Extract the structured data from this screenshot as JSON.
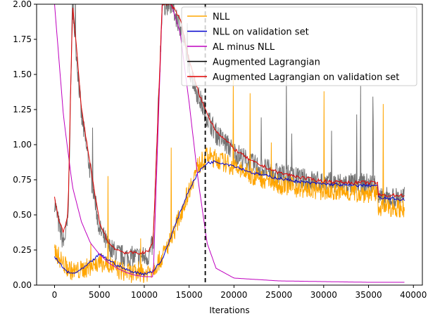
{
  "chart_data": {
    "type": "line",
    "title": "",
    "xlabel": "Iterations",
    "ylabel": "",
    "xlim": [
      -2000,
      41000
    ],
    "ylim": [
      0,
      2.0
    ],
    "x_ticks": [
      0,
      5000,
      10000,
      15000,
      20000,
      25000,
      30000,
      35000,
      40000
    ],
    "x_tick_labels": [
      "0",
      "5000",
      "10000",
      "15000",
      "20000",
      "25000",
      "30000",
      "35000",
      "40000"
    ],
    "y_ticks": [
      0,
      0.25,
      0.5,
      0.75,
      1.0,
      1.25,
      1.5,
      1.75,
      2.0
    ],
    "y_tick_labels": [
      "0.00",
      "0.25",
      "0.50",
      "0.75",
      "1.00",
      "1.25",
      "1.50",
      "1.75",
      "2.00"
    ],
    "grid": false,
    "legend_position": "top-right",
    "vertical_line": {
      "x": 16800,
      "style": "dashed",
      "color": "#000000"
    },
    "series": [
      {
        "name": "NLL",
        "color": "#FFA500",
        "noise": 0.07,
        "x": [
          0,
          500,
          1000,
          1500,
          2000,
          2500,
          3000,
          4000,
          5000,
          6000,
          7000,
          8000,
          9000,
          10000,
          11000,
          12000,
          13000,
          14000,
          15000,
          16000,
          17000,
          18000,
          20000,
          22000,
          25000,
          28000,
          30000,
          33000,
          36000,
          36100,
          39000
        ],
        "y": [
          0.25,
          0.2,
          0.15,
          0.12,
          0.1,
          0.1,
          0.11,
          0.13,
          0.16,
          0.15,
          0.11,
          0.09,
          0.08,
          0.08,
          0.12,
          0.2,
          0.33,
          0.5,
          0.68,
          0.85,
          0.92,
          0.9,
          0.84,
          0.78,
          0.72,
          0.68,
          0.67,
          0.66,
          0.65,
          0.56,
          0.55
        ]
      },
      {
        "name": "NLL on validation set",
        "color": "#0000CD",
        "noise": 0.01,
        "x": [
          0,
          500,
          1000,
          1500,
          2000,
          3000,
          4000,
          5000,
          6000,
          7000,
          8000,
          9000,
          10000,
          11000,
          12000,
          13000,
          14000,
          15000,
          16000,
          17000,
          18000,
          20000,
          22000,
          25000,
          28000,
          30000,
          33000,
          36000,
          36100,
          39000
        ],
        "y": [
          0.2,
          0.16,
          0.12,
          0.09,
          0.08,
          0.11,
          0.16,
          0.22,
          0.18,
          0.14,
          0.11,
          0.09,
          0.08,
          0.1,
          0.18,
          0.35,
          0.52,
          0.68,
          0.8,
          0.87,
          0.88,
          0.85,
          0.8,
          0.76,
          0.73,
          0.72,
          0.71,
          0.71,
          0.62,
          0.61
        ]
      },
      {
        "name": "AL minus NLL",
        "color": "#BF00BF",
        "noise": 0,
        "x": [
          0,
          1000,
          2000,
          3000,
          4000,
          5000,
          6000,
          7000,
          8000,
          9000,
          10000,
          11000,
          12000,
          13000,
          14000,
          15000,
          16000,
          17000,
          18000,
          20000,
          25000,
          30000,
          35000,
          39000
        ],
        "y": [
          2.0,
          1.2,
          0.7,
          0.45,
          0.3,
          0.22,
          0.16,
          0.12,
          0.09,
          0.07,
          0.06,
          0.06,
          2.0,
          2.0,
          1.8,
          1.3,
          0.75,
          0.3,
          0.12,
          0.05,
          0.03,
          0.025,
          0.02,
          0.02
        ]
      },
      {
        "name": "Augmented Lagrangian",
        "color": "#000000",
        "noise": 0.08,
        "x": [
          0,
          500,
          1000,
          1500,
          2000,
          2500,
          3000,
          4000,
          5000,
          6000,
          7000,
          8000,
          9000,
          10000,
          10500,
          11000,
          12000,
          13000,
          14000,
          15000,
          16000,
          17000,
          18000,
          20000,
          22000,
          25000,
          28000,
          30000,
          33000,
          36000,
          36100,
          39000
        ],
        "y": [
          0.6,
          0.42,
          0.3,
          0.45,
          2.0,
          1.6,
          1.2,
          0.8,
          0.4,
          0.27,
          0.22,
          0.2,
          0.2,
          0.2,
          0.21,
          0.3,
          2.0,
          2.0,
          1.85,
          1.55,
          1.35,
          1.2,
          1.08,
          0.95,
          0.86,
          0.79,
          0.75,
          0.73,
          0.72,
          0.72,
          0.62,
          0.62
        ]
      },
      {
        "name": "Augmented Lagrangian on validation set",
        "color": "#E00000",
        "noise": 0.012,
        "x": [
          0,
          500,
          1000,
          1500,
          2000,
          2500,
          3000,
          4000,
          5000,
          6000,
          7000,
          8000,
          9000,
          10000,
          10500,
          11000,
          12000,
          13000,
          14000,
          15000,
          16000,
          17000,
          18000,
          20000,
          22000,
          25000,
          28000,
          30000,
          33000,
          36000,
          36100,
          39000
        ],
        "y": [
          0.62,
          0.45,
          0.38,
          0.5,
          2.0,
          1.65,
          1.25,
          0.85,
          0.45,
          0.3,
          0.25,
          0.23,
          0.23,
          0.23,
          0.24,
          0.32,
          2.0,
          2.0,
          1.9,
          1.6,
          1.38,
          1.22,
          1.1,
          0.97,
          0.88,
          0.8,
          0.76,
          0.74,
          0.73,
          0.73,
          0.64,
          0.64
        ]
      }
    ]
  }
}
